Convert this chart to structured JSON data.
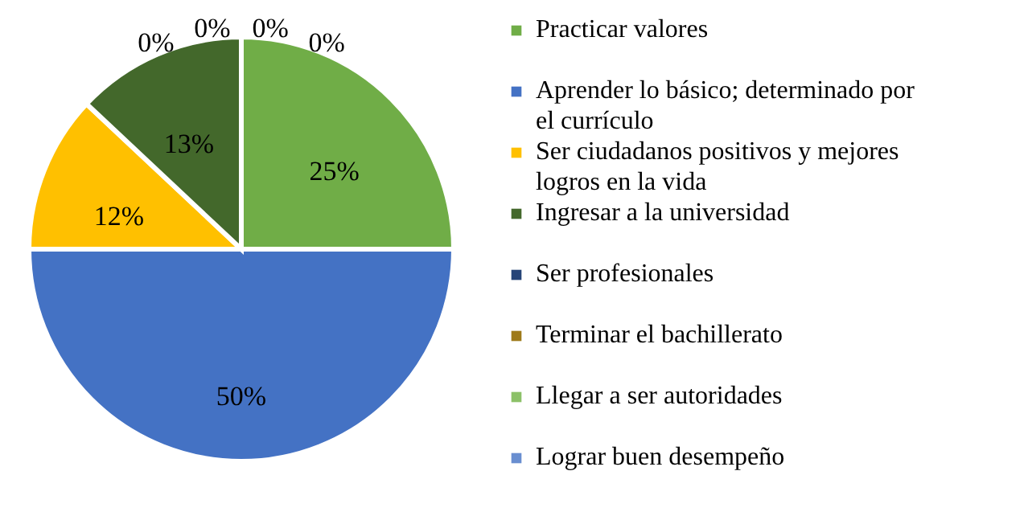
{
  "chart_data": {
    "type": "pie",
    "categories": [
      "Practicar valores",
      "Aprender lo básico; determinado por el currículo",
      "Ser ciudadanos positivos y mejores logros en la vida",
      "Ingresar a la universidad",
      "Ser profesionales",
      "Terminar el bachillerato",
      "Llegar a ser autoridades",
      "Lograr buen desempeño"
    ],
    "values": [
      25,
      50,
      12,
      13,
      0,
      0,
      0,
      0
    ],
    "colors": [
      "#70ad47",
      "#4472c4",
      "#ffc000",
      "#43682b",
      "#264478",
      "#9e7a19",
      "#8cc168",
      "#698ed0"
    ],
    "value_labels": [
      "25%",
      "50%",
      "12%",
      "13%",
      "0%",
      "0%",
      "0%",
      "0%"
    ],
    "legend": "right"
  }
}
